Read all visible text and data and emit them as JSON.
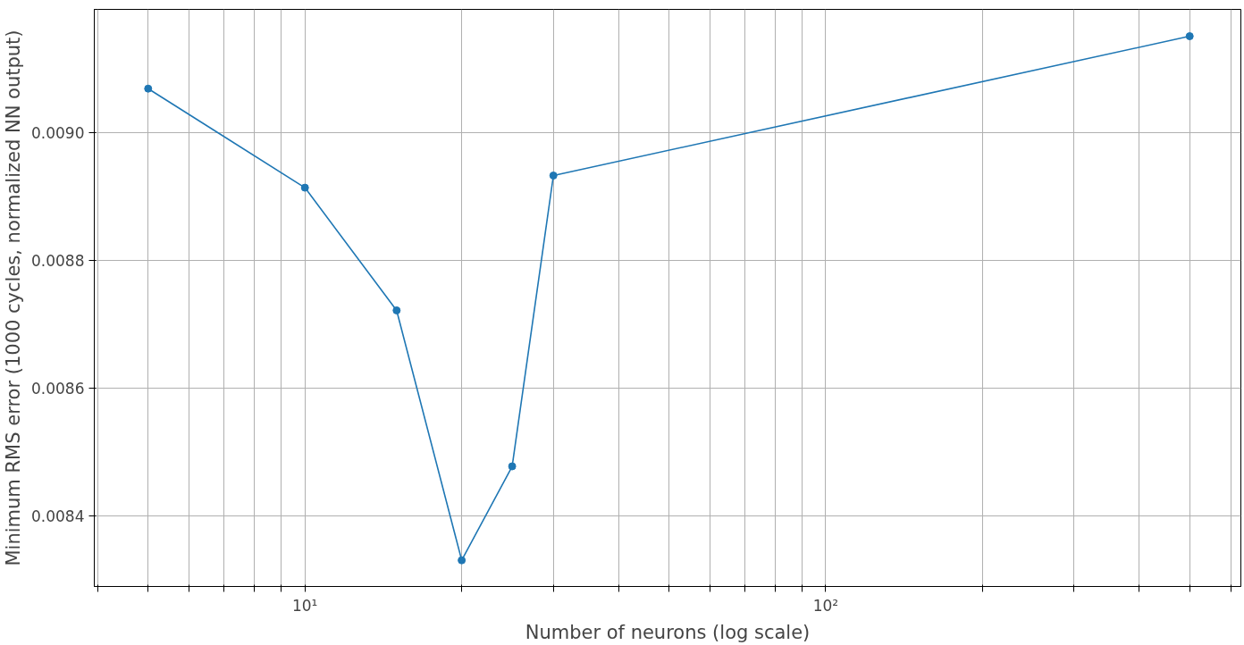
{
  "chart_data": {
    "type": "line",
    "xlabel": "Number of neurons (log scale)",
    "ylabel": "Minimum RMS error (1000 cycles, normalized NN output)",
    "x": [
      5,
      10,
      15,
      20,
      25,
      30,
      500
    ],
    "series": [
      {
        "color": "#1f77b4",
        "values": [
          0.009069,
          0.008914,
          0.008722,
          0.008331,
          0.008478,
          0.008933,
          0.009151
        ]
      }
    ],
    "log": "x",
    "xlim": [
      3.94,
      627
    ],
    "ylim": [
      0.00829,
      0.009193
    ],
    "xticks": [
      {
        "value": 4,
        "label": null
      },
      {
        "value": 5,
        "label": null
      },
      {
        "value": 6,
        "label": null
      },
      {
        "value": 7,
        "label": null
      },
      {
        "value": 8,
        "label": null
      },
      {
        "value": 9,
        "label": null
      },
      {
        "value": 10,
        "label": "10¹"
      },
      {
        "value": 20,
        "label": null
      },
      {
        "value": 30,
        "label": null
      },
      {
        "value": 40,
        "label": null
      },
      {
        "value": 50,
        "label": null
      },
      {
        "value": 60,
        "label": null
      },
      {
        "value": 70,
        "label": null
      },
      {
        "value": 80,
        "label": null
      },
      {
        "value": 90,
        "label": null
      },
      {
        "value": 100,
        "label": "10²"
      },
      {
        "value": 200,
        "label": null
      },
      {
        "value": 300,
        "label": null
      },
      {
        "value": 400,
        "label": null
      },
      {
        "value": 500,
        "label": null
      },
      {
        "value": 600,
        "label": null
      }
    ],
    "yticks": [
      {
        "value": 0.0084,
        "label": "0.0084"
      },
      {
        "value": 0.0086,
        "label": "0.0086"
      },
      {
        "value": 0.0088,
        "label": "0.0088"
      },
      {
        "value": 0.009,
        "label": "0.0090"
      }
    ],
    "grid": true,
    "marker": "circle",
    "line_style": "solid"
  }
}
